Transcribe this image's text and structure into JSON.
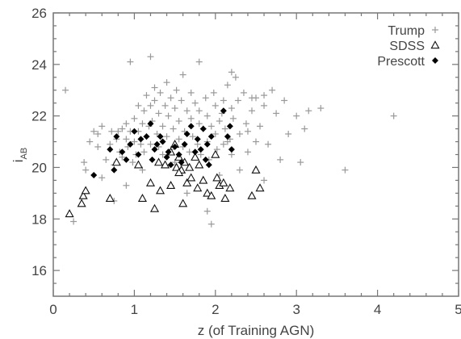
{
  "chart_data": {
    "type": "scatter",
    "title": "",
    "xlabel": "z (of Training AGN)",
    "ylabel_main": "i",
    "ylabel_sub": "AB",
    "xlim": [
      0,
      5
    ],
    "ylim": [
      15,
      26
    ],
    "xticks": [
      "0",
      "1",
      "2",
      "3",
      "4",
      "5"
    ],
    "yticks": [
      "16",
      "18",
      "20",
      "22",
      "24",
      "26"
    ],
    "grid": false,
    "legend_position": "top-right",
    "series": [
      {
        "name": "Trump",
        "marker": "plus",
        "color": "#999999",
        "points": [
          [
            0.15,
            23.0
          ],
          [
            0.38,
            20.2
          ],
          [
            0.4,
            19.9
          ],
          [
            0.45,
            21.0
          ],
          [
            0.5,
            21.4
          ],
          [
            0.55,
            20.8
          ],
          [
            0.55,
            21.3
          ],
          [
            0.6,
            21.6
          ],
          [
            0.6,
            19.6
          ],
          [
            0.65,
            20.3
          ],
          [
            0.7,
            20.9
          ],
          [
            0.72,
            21.4
          ],
          [
            0.75,
            20.1
          ],
          [
            0.78,
            21.1
          ],
          [
            0.8,
            21.4
          ],
          [
            0.82,
            20.6
          ],
          [
            0.85,
            21.5
          ],
          [
            0.85,
            20.4
          ],
          [
            0.9,
            21.1
          ],
          [
            0.9,
            21.7
          ],
          [
            0.92,
            20.8
          ],
          [
            0.95,
            21.4
          ],
          [
            0.98,
            20.2
          ],
          [
            1.0,
            21.9
          ],
          [
            1.0,
            21.0
          ],
          [
            1.02,
            20.5
          ],
          [
            1.05,
            21.4
          ],
          [
            1.05,
            22.4
          ],
          [
            1.08,
            20.9
          ],
          [
            1.1,
            21.7
          ],
          [
            1.12,
            22.2
          ],
          [
            1.12,
            20.6
          ],
          [
            1.15,
            21.2
          ],
          [
            1.15,
            22.8
          ],
          [
            1.18,
            21.6
          ],
          [
            1.2,
            22.4
          ],
          [
            1.2,
            20.9
          ],
          [
            1.22,
            21.8
          ],
          [
            1.25,
            23.1
          ],
          [
            1.25,
            22.6
          ],
          [
            1.28,
            21.3
          ],
          [
            1.3,
            22.1
          ],
          [
            1.3,
            20.8
          ],
          [
            1.32,
            22.9
          ],
          [
            1.35,
            21.6
          ],
          [
            1.35,
            20.5
          ],
          [
            1.38,
            22.4
          ],
          [
            1.4,
            21.2
          ],
          [
            1.4,
            23.3
          ],
          [
            1.42,
            22.0
          ],
          [
            1.45,
            20.7
          ],
          [
            1.45,
            22.7
          ],
          [
            1.48,
            21.5
          ],
          [
            1.5,
            22.3
          ],
          [
            1.5,
            20.2
          ],
          [
            1.52,
            23.0
          ],
          [
            1.55,
            21.8
          ],
          [
            1.55,
            21.1
          ],
          [
            1.58,
            22.6
          ],
          [
            1.6,
            20.8
          ],
          [
            1.6,
            23.6
          ],
          [
            1.62,
            21.4
          ],
          [
            1.65,
            22.2
          ],
          [
            1.68,
            20.6
          ],
          [
            1.7,
            21.9
          ],
          [
            1.7,
            22.9
          ],
          [
            1.72,
            21.2
          ],
          [
            1.75,
            22.5
          ],
          [
            1.78,
            20.9
          ],
          [
            1.8,
            21.7
          ],
          [
            1.8,
            22.2
          ],
          [
            1.82,
            20.5
          ],
          [
            1.85,
            21.5
          ],
          [
            1.88,
            22.7
          ],
          [
            1.9,
            21.0
          ],
          [
            1.9,
            22.0
          ],
          [
            1.92,
            20.3
          ],
          [
            1.95,
            21.6
          ],
          [
            1.98,
            22.9
          ],
          [
            2.0,
            21.3
          ],
          [
            2.0,
            22.4
          ],
          [
            2.02,
            20.7
          ],
          [
            2.05,
            21.8
          ],
          [
            2.08,
            22.1
          ],
          [
            2.1,
            20.9
          ],
          [
            2.1,
            22.6
          ],
          [
            2.12,
            21.5
          ],
          [
            2.15,
            23.2
          ],
          [
            2.18,
            21.1
          ],
          [
            2.2,
            22.3
          ],
          [
            2.2,
            20.5
          ],
          [
            2.22,
            21.9
          ],
          [
            2.25,
            23.5
          ],
          [
            2.28,
            22.6
          ],
          [
            2.3,
            21.3
          ],
          [
            2.35,
            22.9
          ],
          [
            2.38,
            21.7
          ],
          [
            2.4,
            20.6
          ],
          [
            2.45,
            22.2
          ],
          [
            2.5,
            21.0
          ],
          [
            2.5,
            22.7
          ],
          [
            2.55,
            21.6
          ],
          [
            2.6,
            22.4
          ],
          [
            2.65,
            20.9
          ],
          [
            2.7,
            23.0
          ],
          [
            2.75,
            22.1
          ],
          [
            2.8,
            20.3
          ],
          [
            2.85,
            22.6
          ],
          [
            2.9,
            21.3
          ],
          [
            3.0,
            22.0
          ],
          [
            3.05,
            20.2
          ],
          [
            3.1,
            21.5
          ],
          [
            3.15,
            22.2
          ],
          [
            3.3,
            22.3
          ],
          [
            3.6,
            19.9
          ],
          [
            4.2,
            22.0
          ],
          [
            0.95,
            24.1
          ],
          [
            1.2,
            24.3
          ],
          [
            1.8,
            24.1
          ],
          [
            2.15,
            21.0
          ],
          [
            1.95,
            17.8
          ],
          [
            1.9,
            18.3
          ],
          [
            0.75,
            18.7
          ],
          [
            1.45,
            19.3
          ],
          [
            1.65,
            19.0
          ],
          [
            2.3,
            19.9
          ],
          [
            2.6,
            19.5
          ],
          [
            1.1,
            19.9
          ],
          [
            0.9,
            19.3
          ],
          [
            2.2,
            23.7
          ],
          [
            2.45,
            22.7
          ],
          [
            2.6,
            22.8
          ],
          [
            2.4,
            21.4
          ],
          [
            2.05,
            19.7
          ],
          [
            0.25,
            17.9
          ]
        ]
      },
      {
        "name": "SDSS",
        "marker": "open-triangle",
        "color": "#111111",
        "points": [
          [
            0.2,
            18.2
          ],
          [
            0.35,
            18.6
          ],
          [
            0.37,
            18.9
          ],
          [
            0.4,
            19.1
          ],
          [
            0.7,
            18.8
          ],
          [
            0.78,
            20.2
          ],
          [
            1.05,
            20.1
          ],
          [
            1.1,
            18.8
          ],
          [
            1.2,
            19.4
          ],
          [
            1.25,
            18.4
          ],
          [
            1.3,
            20.2
          ],
          [
            1.32,
            19.1
          ],
          [
            1.38,
            20.1
          ],
          [
            1.45,
            20.6
          ],
          [
            1.5,
            20.9
          ],
          [
            1.52,
            20.0
          ],
          [
            1.55,
            20.4
          ],
          [
            1.58,
            19.9
          ],
          [
            1.6,
            18.6
          ],
          [
            1.62,
            20.2
          ],
          [
            1.65,
            19.4
          ],
          [
            1.7,
            19.6
          ],
          [
            1.75,
            20.4
          ],
          [
            1.78,
            19.2
          ],
          [
            1.8,
            20.1
          ],
          [
            1.85,
            19.5
          ],
          [
            1.9,
            19.0
          ],
          [
            1.95,
            18.9
          ],
          [
            2.0,
            20.5
          ],
          [
            2.02,
            19.6
          ],
          [
            2.05,
            19.3
          ],
          [
            2.1,
            19.4
          ],
          [
            2.12,
            18.8
          ],
          [
            2.18,
            19.2
          ],
          [
            2.45,
            18.9
          ],
          [
            2.5,
            19.9
          ],
          [
            2.55,
            19.2
          ],
          [
            1.45,
            19.3
          ],
          [
            1.55,
            19.8
          ],
          [
            1.68,
            20.0
          ]
        ]
      },
      {
        "name": "Prescott",
        "marker": "filled-diamond",
        "color": "#000000",
        "points": [
          [
            0.5,
            19.7
          ],
          [
            0.7,
            20.7
          ],
          [
            0.75,
            19.9
          ],
          [
            0.78,
            21.2
          ],
          [
            0.85,
            20.6
          ],
          [
            0.9,
            20.3
          ],
          [
            0.95,
            20.9
          ],
          [
            1.0,
            21.4
          ],
          [
            1.05,
            20.5
          ],
          [
            1.08,
            21.1
          ],
          [
            1.15,
            21.2
          ],
          [
            1.2,
            21.7
          ],
          [
            1.22,
            20.3
          ],
          [
            1.25,
            20.7
          ],
          [
            1.28,
            20.9
          ],
          [
            1.32,
            21.2
          ],
          [
            1.35,
            21.0
          ],
          [
            1.4,
            20.4
          ],
          [
            1.42,
            20.6
          ],
          [
            1.45,
            20.1
          ],
          [
            1.5,
            20.8
          ],
          [
            1.55,
            20.5
          ],
          [
            1.58,
            20.2
          ],
          [
            1.62,
            20.9
          ],
          [
            1.65,
            21.3
          ],
          [
            1.7,
            21.6
          ],
          [
            1.75,
            20.6
          ],
          [
            1.78,
            21.1
          ],
          [
            1.82,
            20.7
          ],
          [
            1.85,
            21.5
          ],
          [
            1.88,
            20.3
          ],
          [
            1.9,
            20.9
          ],
          [
            1.92,
            20.1
          ],
          [
            1.95,
            21.2
          ],
          [
            2.1,
            22.2
          ],
          [
            2.15,
            21.2
          ],
          [
            2.18,
            21.6
          ],
          [
            2.2,
            20.7
          ]
        ]
      }
    ]
  }
}
